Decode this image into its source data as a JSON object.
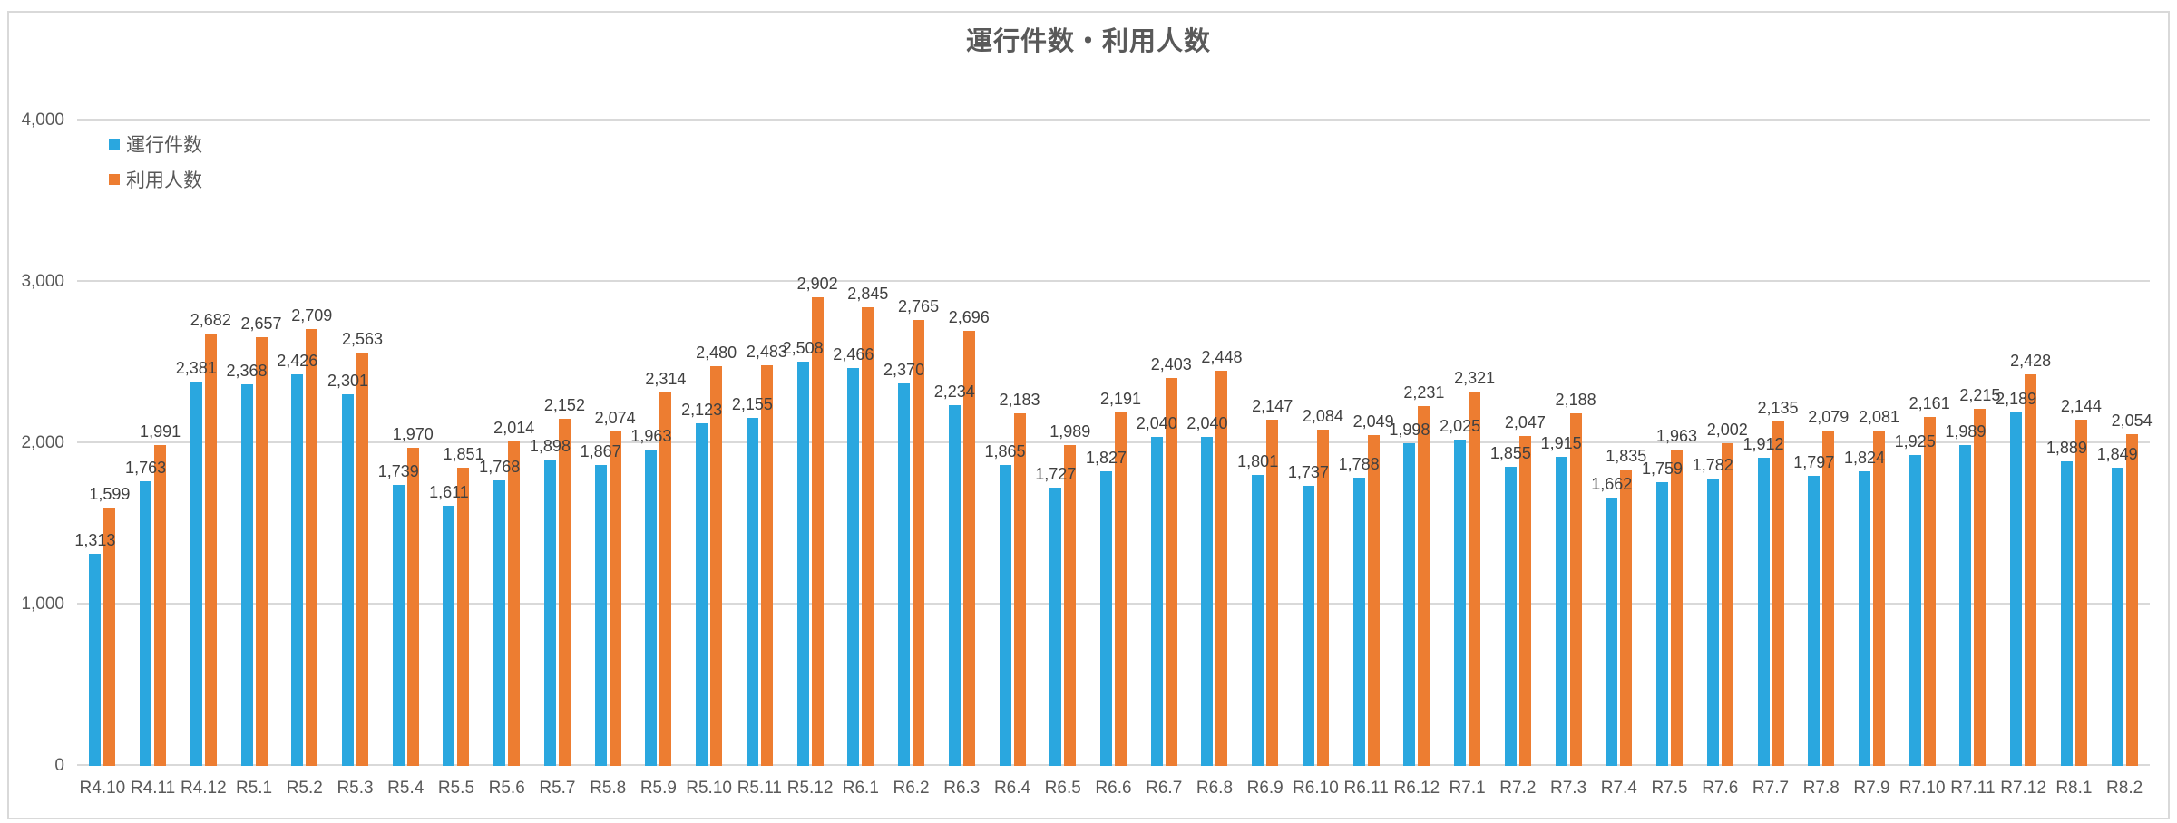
{
  "chart_data": {
    "type": "bar",
    "title": "運行件数・利用人数",
    "categories": [
      "R4.10",
      "R4.11",
      "R4.12",
      "R5.1",
      "R5.2",
      "R5.3",
      "R5.4",
      "R5.5",
      "R5.6",
      "R5.7",
      "R5.8",
      "R5.9",
      "R5.10",
      "R5.11",
      "R5.12",
      "R6.1",
      "R6.2",
      "R6.3",
      "R6.4",
      "R6.5",
      "R6.6",
      "R6.7",
      "R6.8",
      "R6.9",
      "R6.10",
      "R6.11",
      "R6.12",
      "R7.1",
      "R7.2",
      "R7.3",
      "R7.4",
      "R7.5",
      "R7.6",
      "R7.7",
      "R7.8",
      "R7.9",
      "R7.10",
      "R7.11",
      "R7.12",
      "R8.1",
      "R8.2"
    ],
    "series": [
      {
        "name": "運行件数",
        "color": "#2AA7DF",
        "values": [
          1313,
          1763,
          2381,
          2368,
          2426,
          2301,
          1739,
          1611,
          1768,
          1898,
          1867,
          1963,
          2123,
          2155,
          2508,
          2466,
          2370,
          2234,
          1865,
          1727,
          1827,
          2040,
          2040,
          1801,
          1737,
          1788,
          1998,
          2025,
          1855,
          1915,
          1662,
          1759,
          1782,
          1912,
          1797,
          1824,
          1925,
          1989,
          2189,
          1889,
          1849
        ]
      },
      {
        "name": "利用人数",
        "color": "#ED7D31",
        "values": [
          1599,
          1991,
          2682,
          2657,
          2709,
          2563,
          1970,
          1851,
          2014,
          2152,
          2074,
          2314,
          2480,
          2483,
          2902,
          2845,
          2765,
          2696,
          2183,
          1989,
          2191,
          2403,
          2448,
          2147,
          2084,
          2049,
          2231,
          2321,
          2047,
          2188,
          1835,
          1963,
          2002,
          2135,
          2079,
          2081,
          2161,
          2215,
          2428,
          2144,
          2054
        ]
      }
    ],
    "ylim": [
      0,
      4000
    ],
    "yticks": [
      0,
      1000,
      2000,
      3000,
      4000
    ],
    "ytick_labels": [
      "0",
      "1,000",
      "2,000",
      "3,000",
      "4,000"
    ],
    "grid": true,
    "data_labels": true,
    "legend_position": "top-left",
    "gridline_color": "#d9d9d9",
    "label_color": "#404040",
    "axis_text_color": "#595959"
  }
}
